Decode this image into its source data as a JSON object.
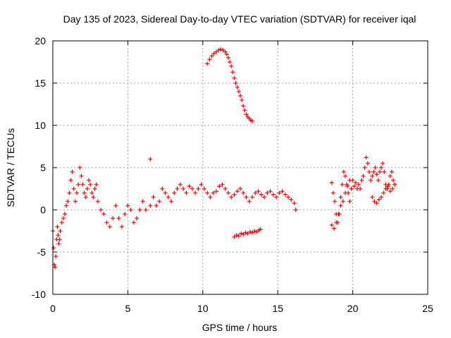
{
  "chart_data": {
    "type": "scatter",
    "title": "Day 135 of 2023, Sidereal Day-to-day VTEC variation (SDTVAR) for receiver iqal",
    "xlabel": "GPS time / hours",
    "ylabel": "SDTVAR / TECUs",
    "xlim": [
      0,
      25
    ],
    "ylim": [
      -10,
      20
    ],
    "xticks": [
      0,
      5,
      10,
      15,
      20,
      25
    ],
    "yticks": [
      -10,
      -5,
      0,
      5,
      10,
      15,
      20
    ],
    "xtick_labels": [
      "0",
      "5",
      "10",
      "15",
      "20",
      "25"
    ],
    "ytick_labels": [
      "-10",
      "-5",
      "0",
      "5",
      "10",
      "15",
      "20"
    ],
    "grid": true,
    "marker": "+",
    "series": [
      {
        "name": "SDTVAR",
        "color": "#ff0000",
        "x": [
          0.0,
          0.05,
          0.1,
          0.15,
          0.2,
          0.25,
          0.3,
          0.35,
          0.4,
          0.45,
          0.5,
          0.6,
          0.7,
          0.8,
          0.9,
          1.0,
          1.1,
          1.2,
          1.3,
          1.4,
          1.5,
          1.6,
          1.7,
          1.8,
          1.9,
          2.0,
          2.1,
          2.2,
          2.3,
          2.4,
          2.5,
          2.6,
          2.7,
          2.8,
          2.9,
          3.0,
          3.2,
          3.4,
          3.6,
          3.8,
          4.0,
          4.2,
          4.4,
          4.6,
          4.8,
          5.0,
          5.2,
          5.4,
          5.6,
          5.8,
          6.0,
          6.2,
          6.5,
          6.7,
          6.9,
          7.1,
          7.3,
          7.5,
          7.7,
          7.9,
          8.1,
          8.3,
          8.5,
          8.7,
          8.9,
          9.1,
          9.3,
          9.5,
          9.7,
          9.9,
          10.1,
          10.3,
          10.5,
          10.7,
          10.9,
          11.1,
          11.3,
          11.5,
          11.7,
          11.9,
          12.1,
          12.3,
          12.5,
          12.7,
          12.9,
          13.1,
          13.3,
          13.5,
          13.7,
          13.9,
          14.1,
          14.3,
          14.5,
          14.7,
          14.9,
          15.1,
          15.3,
          15.5,
          15.7,
          15.9,
          16.1,
          16.2,
          10.3,
          10.45,
          10.6,
          10.75,
          10.9,
          11.05,
          11.2,
          11.35,
          11.5,
          11.6,
          11.7,
          11.8,
          11.9,
          12.0,
          12.1,
          12.2,
          12.3,
          12.4,
          12.5,
          12.6,
          12.7,
          12.8,
          12.9,
          13.0,
          13.1,
          13.2,
          13.3,
          12.1,
          12.25,
          12.4,
          12.55,
          12.7,
          12.85,
          13.0,
          13.15,
          13.3,
          13.45,
          13.6,
          13.75,
          13.85,
          6.5,
          18.6,
          18.7,
          18.8,
          18.9,
          19.0,
          19.1,
          19.2,
          19.3,
          19.4,
          19.5,
          19.6,
          19.7,
          19.8,
          19.9,
          20.0,
          20.1,
          20.2,
          20.3,
          20.4,
          20.5,
          20.6,
          20.7,
          20.8,
          20.9,
          21.0,
          21.1,
          21.2,
          21.3,
          21.4,
          21.5,
          21.6,
          21.7,
          21.8,
          21.9,
          22.0,
          22.1,
          22.2,
          22.3,
          22.4,
          22.5,
          22.6,
          22.7,
          22.8,
          18.6,
          18.75,
          18.9,
          19.05,
          19.2,
          19.35,
          19.5,
          19.65,
          19.8,
          21.3,
          21.45,
          21.6,
          21.75,
          21.9,
          22.05,
          22.2,
          22.35,
          22.5,
          22.65,
          22.8
        ],
        "y": [
          -2.5,
          -4.5,
          -6.5,
          -6.8,
          -5.5,
          -3.5,
          -2.0,
          -3.0,
          -4.0,
          -3.5,
          -2.5,
          -1.5,
          -1.0,
          -0.5,
          0.5,
          1.0,
          2.0,
          3.5,
          4.5,
          2.5,
          1.0,
          2.0,
          3.0,
          5.0,
          4.0,
          3.0,
          2.0,
          1.5,
          2.5,
          3.5,
          3.0,
          2.0,
          1.5,
          2.5,
          3.0,
          1.0,
          0.0,
          -0.5,
          -1.5,
          -2.0,
          -1.0,
          0.5,
          -1.0,
          -2.0,
          -0.5,
          0.5,
          0.0,
          -1.5,
          -1.0,
          0.0,
          1.0,
          0.0,
          0.5,
          1.5,
          0.5,
          1.0,
          2.5,
          2.0,
          1.5,
          1.0,
          2.0,
          2.5,
          3.0,
          2.5,
          2.0,
          2.8,
          2.5,
          2.0,
          2.5,
          3.0,
          2.5,
          2.0,
          1.5,
          2.0,
          2.2,
          2.8,
          3.0,
          2.5,
          2.0,
          1.5,
          1.8,
          2.2,
          2.5,
          2.0,
          1.5,
          1.0,
          1.5,
          2.0,
          2.2,
          1.8,
          1.5,
          2.0,
          2.2,
          1.8,
          1.5,
          2.0,
          2.2,
          1.8,
          1.5,
          1.2,
          0.8,
          0.0,
          17.3,
          17.8,
          18.2,
          18.5,
          18.7,
          18.9,
          19.0,
          18.9,
          18.7,
          18.4,
          18.0,
          17.5,
          17.0,
          16.3,
          15.6,
          15.0,
          14.5,
          14.0,
          13.5,
          13.0,
          12.3,
          11.8,
          11.3,
          11.0,
          10.8,
          10.6,
          10.5,
          -3.2,
          -3.0,
          -3.1,
          -2.8,
          -2.9,
          -2.7,
          -2.8,
          -2.6,
          -2.7,
          -2.5,
          -2.6,
          -2.4,
          -2.3,
          6.0,
          3.2,
          2.0,
          1.0,
          -0.5,
          -1.5,
          -0.5,
          1.5,
          3.0,
          4.5,
          4.0,
          3.0,
          2.0,
          1.0,
          2.5,
          3.5,
          2.8,
          3.2,
          2.5,
          3.0,
          2.5,
          3.5,
          4.0,
          5.0,
          6.2,
          5.5,
          4.5,
          3.5,
          4.0,
          4.5,
          5.0,
          4.2,
          3.5,
          4.5,
          5.0,
          5.5,
          4.5,
          3.0,
          2.5,
          3.0,
          4.0,
          4.5,
          3.5,
          3.0,
          -1.8,
          -2.2,
          -1.5,
          -0.5,
          0.5,
          1.0,
          2.0,
          2.8,
          3.5,
          1.5,
          1.0,
          0.8,
          1.2,
          1.5,
          2.0,
          2.5,
          2.8,
          2.2,
          2.5,
          3.0
        ]
      }
    ]
  }
}
